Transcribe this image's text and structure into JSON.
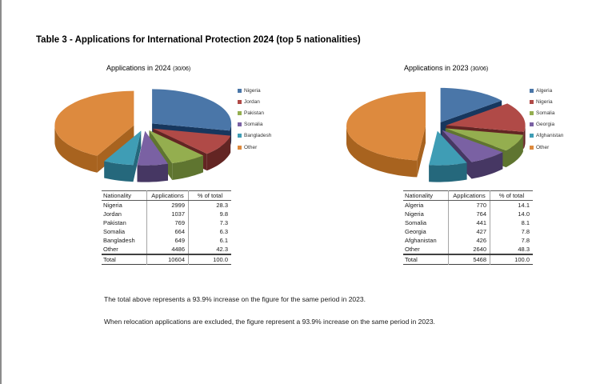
{
  "page": {
    "title": "Table 3 - Applications for International Protection 2024 (top 5 nationalities)",
    "notes": [
      "The total above represents a 93.9% increase on the figure for the same period in 2023.",
      "When relocation applications are excluded, the figure represent a 93.9% increase on the same period in 2023."
    ]
  },
  "palette": {
    "faces": [
      "#4a76a8",
      "#b04a47",
      "#94ae4f",
      "#7a61a3",
      "#3f9db5",
      "#dd8a3e"
    ],
    "walls": [
      "#17375e",
      "#632523",
      "#5f7530",
      "#463763",
      "#25687c",
      "#a8631f"
    ]
  },
  "chart_data": [
    {
      "type": "pie",
      "style": "3d-exploded-pie",
      "title": "Applications in 2024",
      "title_note": "(30/06)",
      "legend_position": "right",
      "labels": [
        "Nigeria",
        "Jordan",
        "Pakistan",
        "Somalia",
        "Bangladesh",
        "Other"
      ],
      "values": [
        2999,
        1037,
        769,
        664,
        649,
        4486
      ],
      "percents": [
        28.3,
        9.8,
        7.3,
        6.3,
        6.1,
        42.3
      ],
      "total": 10604
    },
    {
      "type": "pie",
      "style": "3d-exploded-pie",
      "title": "Applications in 2023",
      "title_note": "(30/06)",
      "legend_position": "right",
      "labels": [
        "Algeria",
        "Nigeria",
        "Somalia",
        "Georgia",
        "Afghanistan",
        "Other"
      ],
      "values": [
        770,
        764,
        441,
        427,
        426,
        2640
      ],
      "percents": [
        14.1,
        14.0,
        8.1,
        7.8,
        7.8,
        48.3
      ],
      "total": 5468
    }
  ],
  "tables": [
    {
      "headers": [
        "Nationality",
        "Applications",
        "% of total"
      ],
      "rows": [
        [
          "Nigeria",
          "2999",
          "28.3"
        ],
        [
          "Jordan",
          "1037",
          "9.8"
        ],
        [
          "Pakistan",
          "769",
          "7.3"
        ],
        [
          "Somalia",
          "664",
          "6.3"
        ],
        [
          "Bangladesh",
          "649",
          "6.1"
        ],
        [
          "Other",
          "4486",
          "42.3"
        ]
      ],
      "total_row": [
        "Total",
        "10604",
        "100.0"
      ]
    },
    {
      "headers": [
        "Nationality",
        "Applications",
        "% of total"
      ],
      "rows": [
        [
          "Algeria",
          "770",
          "14.1"
        ],
        [
          "Nigeria",
          "764",
          "14.0"
        ],
        [
          "Somalia",
          "441",
          "8.1"
        ],
        [
          "Georgia",
          "427",
          "7.8"
        ],
        [
          "Afghanistan",
          "426",
          "7.8"
        ],
        [
          "Other",
          "2640",
          "48.3"
        ]
      ],
      "total_row": [
        "Total",
        "5468",
        "100.0"
      ]
    }
  ]
}
